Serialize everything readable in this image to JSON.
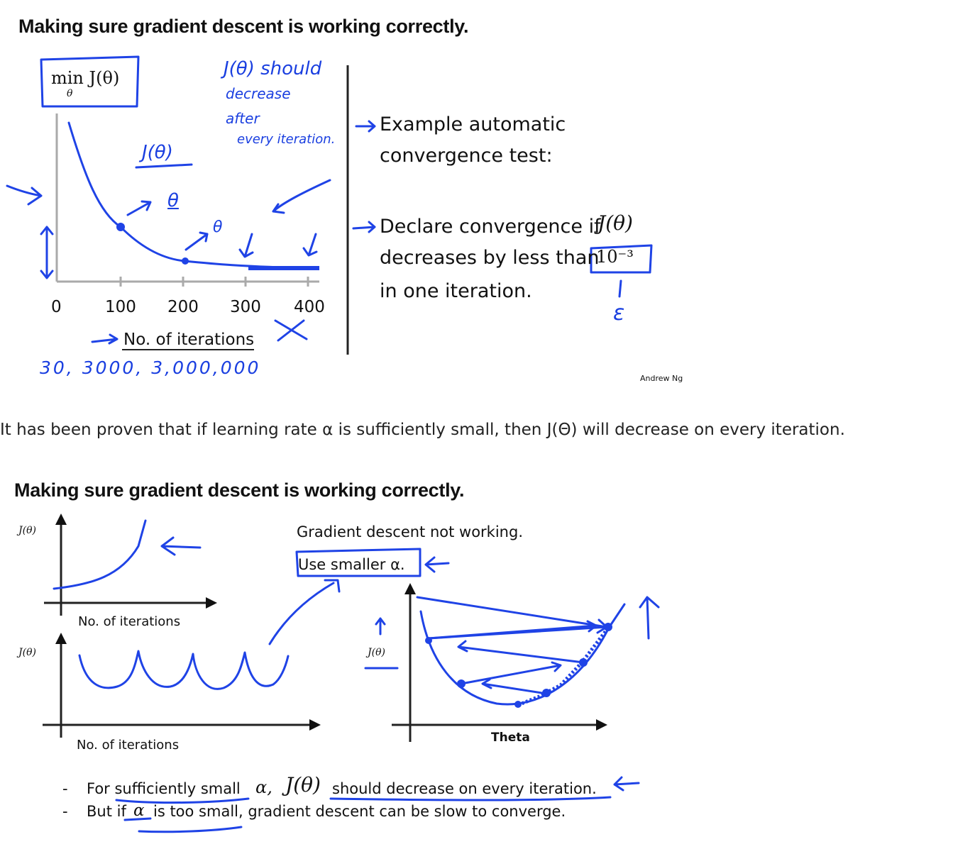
{
  "slide1": {
    "title": "Making sure gradient descent is working correctly.",
    "min_label": "min J(θ)",
    "min_sub": "θ",
    "note_line1": "J(θ) should",
    "note_line2": "decrease",
    "note_line3": "after",
    "note_line4": "every iteration.",
    "j_label": "J(θ)",
    "theta_a": "θ",
    "theta_b": "θ",
    "x_ticks": [
      "0",
      "100",
      "200",
      "300",
      "400"
    ],
    "x_label": "No. of iterations",
    "scale_numbers": "30,   3000,  3,000,000",
    "example_line1": "Example automatic",
    "example_line2": "convergence test:",
    "declare_line1": "Declare convergence if",
    "declare_j": "J(θ)",
    "declare_line2": "decreases by less than",
    "declare_value": "10⁻³",
    "declare_line3": "in one iteration.",
    "epsilon": "ε",
    "credit": "Andrew Ng"
  },
  "paragraph": "It has been proven that if learning rate α is sufficiently small, then J(Θ) will decrease on every iteration.",
  "slide2": {
    "title": "Making sure gradient descent is working correctly.",
    "y_label_top": "J(θ)",
    "y_label_bottom": "J(θ)",
    "y_label_right": "J(θ)",
    "x_label_top": "No. of iterations",
    "x_label_bottom": "No. of iterations",
    "not_working": "Gradient descent not working.",
    "use_smaller": "Use smaller α.",
    "theta_axis": "Theta",
    "bullet1_a": "For sufficiently small",
    "bullet1_alpha": "α,",
    "bullet1_j": "J(θ)",
    "bullet1_b": "should decrease on every iteration.",
    "bullet2_a": "But if",
    "bullet2_alpha": "α",
    "bullet2_b": "is too small, gradient descent can be slow to converge."
  }
}
